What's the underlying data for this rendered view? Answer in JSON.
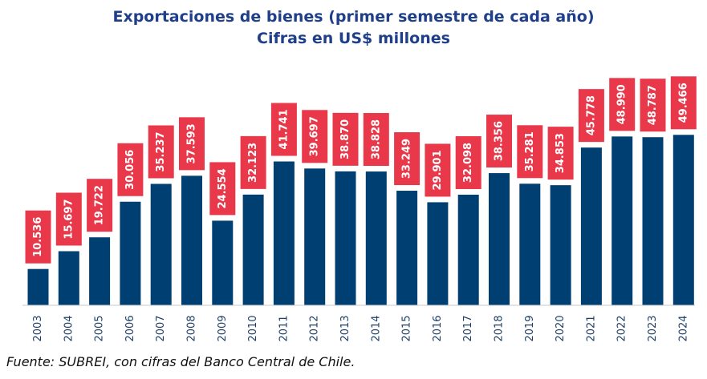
{
  "chart_data": {
    "type": "bar",
    "title": "Exportaciones de bienes (primer semestre de cada año)",
    "subtitle": "Cifras en US$ millones",
    "categories": [
      "2003",
      "2004",
      "2005",
      "2006",
      "2007",
      "2008",
      "2009",
      "2010",
      "2011",
      "2012",
      "2013",
      "2014",
      "2015",
      "2016",
      "2017",
      "2018",
      "2019",
      "2020",
      "2021",
      "2022",
      "2023",
      "2024"
    ],
    "values": [
      10536,
      15697,
      19722,
      30056,
      35237,
      37593,
      24554,
      32123,
      41741,
      39697,
      38870,
      38828,
      33249,
      29901,
      32098,
      38356,
      35281,
      34853,
      45778,
      48990,
      48787,
      49466
    ],
    "value_labels": [
      "10.536",
      "15.697",
      "19.722",
      "30.056",
      "35.237",
      "37.593",
      "24.554",
      "32.123",
      "41.741",
      "39.697",
      "38.870",
      "38.828",
      "33.249",
      "29.901",
      "32.098",
      "38.356",
      "35.281",
      "34.853",
      "45.778",
      "48.990",
      "48.787",
      "49.466"
    ],
    "ylim": [
      0,
      55000
    ],
    "grid": false,
    "colors": {
      "bar": "#003f72",
      "label_box": "#e8384a",
      "label_text": "#ffffff",
      "axis_text": "#1f3f66",
      "title": "#1f3f8a"
    }
  },
  "source": "Fuente: SUBREI, con cifras del Banco Central de Chile."
}
